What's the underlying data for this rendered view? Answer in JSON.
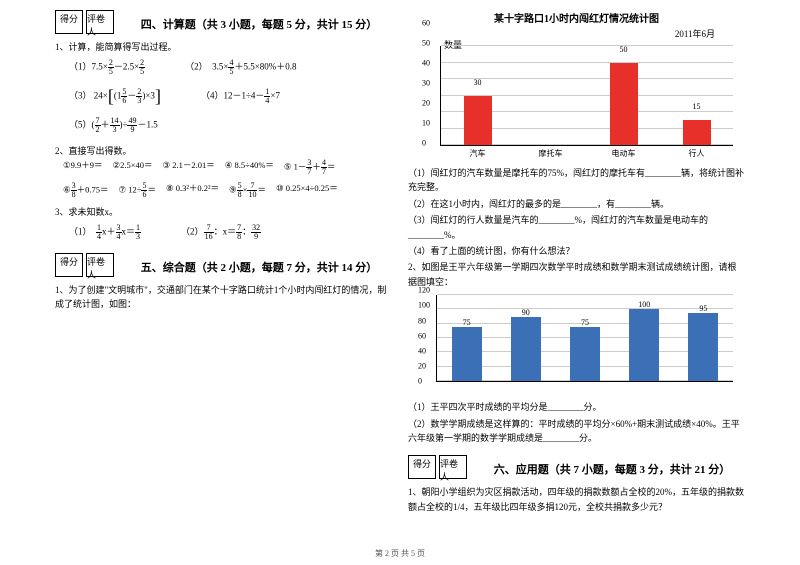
{
  "left": {
    "scoreLabels": {
      "score": "得分",
      "grader": "评卷人"
    },
    "section4": {
      "title": "四、计算题（共 3 小题，每题 5 分，共计 15 分）",
      "q1": "1、计算，能简算得写出过程。",
      "items1": {
        "a": "（1）7.5×",
        "a2": "－2.5×",
        "b": "（2）　3.5×",
        "b2": "＋5.5×80%＋0.8",
        "c": "（3）",
        "c_inner1": "24×",
        "c_inner2": "×3",
        "d": "（4）12－1÷4－",
        "d2": "×7",
        "e": "（5）",
        "e2": "÷",
        "e3": "－1.5"
      },
      "q2": "2、直接写出得数。",
      "items2": {
        "a": "①9.9＋9＝",
        "b": "②2.5×40＝",
        "c": "③ 2.1－2.01＝",
        "d": "④ 8.5÷40%＝",
        "e": "⑤ 1－",
        "e2": "＋",
        "e3": "＝",
        "f": "⑥",
        "f2": "＋0.75＝",
        "g": "⑦ 12÷",
        "g2": "＝",
        "h": "⑧ 0.3²＋0.2²＝",
        "i": "⑨",
        "i2": "×",
        "i3": "＝",
        "j": "⑩ 0.25×4÷0.25＝"
      },
      "q3": "3、求未知数x。",
      "items3": {
        "a": "（1）　",
        "a2": "x＋",
        "a3": "x＝",
        "b": "（2）",
        "b2": "：x＝",
        "b3": "："
      }
    },
    "section5": {
      "title": "五、综合题（共 2 小题，每题 7 分，共计 14 分）",
      "q1": "1、为了创建\"文明城市\"，交通部门在某个十字路口统计1个小时内闯红灯的情况，制成了统计图，如图：",
      "q2_intro": "2、如图是王平六年级第一学期四次数学平时成绩和数学期末测试成绩统计图，请根据图填空：",
      "q2a": "（1）王平四次平时成绩的平均分是________分。",
      "q2b": "（2）数学学期成绩是这样算的：平时成绩的平均分×60%+期末测试成绩×40%。王平六年级第一学期的数学学期成绩是________分。"
    }
  },
  "right": {
    "chart1": {
      "title": "某十字路口1小时内闯红灯情况统计图",
      "date": "2011年6月",
      "ylabel": "数量",
      "ymax": 60,
      "ytick_step": 10,
      "categories": [
        "汽车",
        "摩托车",
        "电动车",
        "行人"
      ],
      "values": [
        30,
        null,
        50,
        15
      ],
      "bar_color": "#e8302a",
      "grid_color": "#cccccc",
      "bg": "#ffffff"
    },
    "q1_lines": {
      "a": "（1）闯红灯的汽车数量是摩托车的75%，闯红灯的摩托车有________辆，将统计图补充完整。",
      "b": "（2）在这1小时内，闯红灯的最多的是________，有________辆。",
      "c": "（3）闯红灯的行人数量是汽车的________%，闯红灯的汽车数量是电动车的________%。",
      "d": "（4）看了上面的统计图，你有什么想法？"
    },
    "chart2": {
      "ymax": 120,
      "ytick_step": 20,
      "categories": [
        "",
        "",
        "",
        "",
        ""
      ],
      "values": [
        75,
        90,
        75,
        100,
        95
      ],
      "bar_color": "#3b6fb6",
      "grid_color": "#cccccc"
    },
    "section6": {
      "title": "六、应用题（共 7 小题，每题 3 分，共计 21 分）",
      "q1": "1、朝阳小学组织为灾区捐款活动，四年级的捐款数额占全校的20%，五年级的捐款数额占全校的1/4，五年级比四年级多捐120元，全校共捐款多少元？"
    }
  },
  "footer": "第 2 页 共 5 页"
}
